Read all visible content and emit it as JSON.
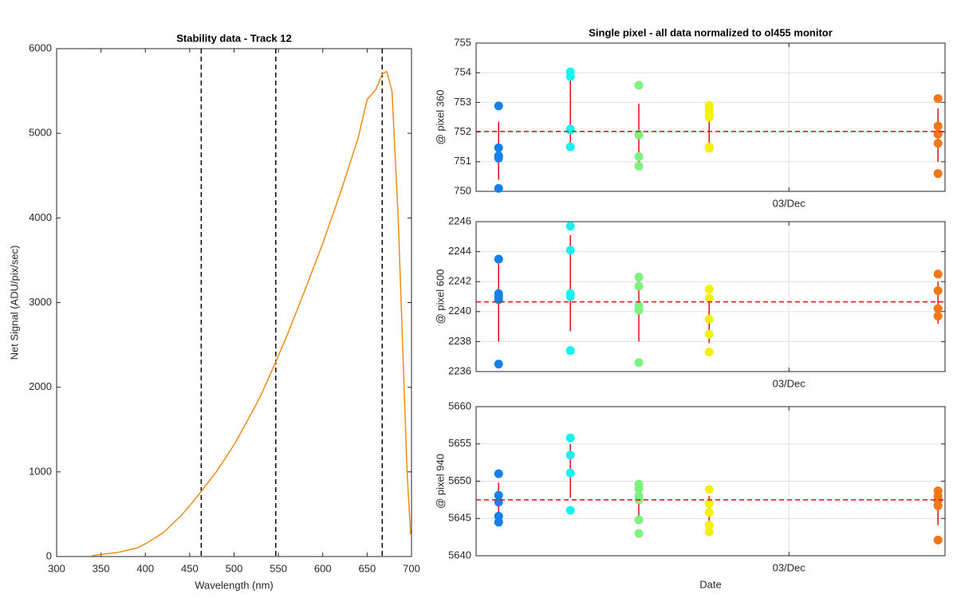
{
  "chart_data": [
    {
      "type": "line",
      "title": "Stability data - Track 12",
      "xlabel": "Wavelength (nm)",
      "ylabel": "Net Signal (ADU/pix/sec)",
      "xlim": [
        300,
        700
      ],
      "ylim": [
        0,
        6000
      ],
      "xticks": [
        300,
        350,
        400,
        450,
        500,
        550,
        600,
        650,
        700
      ],
      "yticks": [
        0,
        1000,
        2000,
        3000,
        4000,
        5000,
        6000
      ],
      "grid": false,
      "color": "#f08c14",
      "x": [
        340,
        350,
        370,
        390,
        400,
        420,
        440,
        450,
        463,
        480,
        500,
        520,
        530,
        547,
        560,
        580,
        600,
        620,
        640,
        650,
        660,
        667,
        672,
        678,
        685,
        690,
        695,
        699
      ],
      "values": [
        10,
        25,
        50,
        100,
        150,
        280,
        480,
        600,
        770,
        1000,
        1320,
        1700,
        1900,
        2300,
        2620,
        3150,
        3700,
        4300,
        4950,
        5400,
        5520,
        5700,
        5730,
        5500,
        4000,
        2500,
        1000,
        260
      ],
      "vlines": [
        463,
        547,
        667
      ]
    },
    {
      "type": "scatter",
      "title": "Single pixel - all data normalized to ol455 monitor",
      "ylabel": "@ pixel 360",
      "xlim": [
        0,
        100
      ],
      "xticks": [
        {
          "value": 66.7,
          "label": "03/Dec"
        }
      ],
      "ylim": [
        750,
        755
      ],
      "yticks": [
        750,
        751,
        752,
        753,
        754,
        755
      ],
      "grid": true,
      "mean": 752.02,
      "series": [
        {
          "color": "#1580e8",
          "x": [
            4.8,
            4.8,
            4.8,
            4.8,
            4.8
          ],
          "values": [
            752.88,
            751.47,
            751.2,
            751.12,
            750.1
          ]
        },
        {
          "color": "#19f0f0",
          "x": [
            20.1,
            20.1,
            20.1,
            20.1,
            20.1
          ],
          "values": [
            754.03,
            753.87,
            752.1,
            752.07,
            751.5
          ]
        },
        {
          "color": "#80f080",
          "x": [
            34.7,
            34.7,
            34.7,
            34.7,
            34.7
          ],
          "values": [
            753.58,
            751.93,
            751.9,
            751.17,
            750.85
          ]
        },
        {
          "color": "#f5f00a",
          "x": [
            49.7,
            49.7,
            49.7,
            49.7,
            49.7,
            49.7
          ],
          "values": [
            752.9,
            752.75,
            752.6,
            752.5,
            751.5,
            751.45
          ]
        },
        {
          "color": "#f07818",
          "x": [
            98.5,
            98.5,
            98.5,
            98.5,
            98.5
          ],
          "values": [
            753.13,
            752.2,
            751.93,
            751.62,
            750.6
          ]
        }
      ],
      "error_bars": {
        "x": [
          4.8,
          20.1,
          34.7,
          49.7,
          98.5
        ],
        "values": [
          751.37,
          752.75,
          751.93,
          752.18,
          751.9
        ],
        "errors": [
          0.98,
          1.15,
          1.03,
          0.68,
          0.9
        ]
      }
    },
    {
      "type": "scatter",
      "ylabel": "@ pixel 600",
      "xlim": [
        0,
        100
      ],
      "xticks": [
        {
          "value": 66.7,
          "label": "03/Dec"
        }
      ],
      "ylim": [
        2236,
        2246
      ],
      "yticks": [
        2236,
        2238,
        2240,
        2242,
        2244,
        2246
      ],
      "grid": true,
      "mean": 2240.65,
      "series": [
        {
          "color": "#1580e8",
          "x": [
            4.8,
            4.8,
            4.8,
            4.8,
            4.8
          ],
          "values": [
            2243.5,
            2241.2,
            2241.0,
            2240.8,
            2236.5
          ]
        },
        {
          "color": "#19f0f0",
          "x": [
            20.1,
            20.1,
            20.1,
            20.1,
            20.1
          ],
          "values": [
            2245.7,
            2244.1,
            2241.2,
            2241.0,
            2237.4
          ]
        },
        {
          "color": "#80f080",
          "x": [
            34.7,
            34.7,
            34.7,
            34.7,
            34.7
          ],
          "values": [
            2242.3,
            2241.7,
            2240.4,
            2240.1,
            2236.6
          ]
        },
        {
          "color": "#f5f00a",
          "x": [
            49.7,
            49.7,
            49.7,
            49.7,
            49.7
          ],
          "values": [
            2241.5,
            2240.9,
            2239.5,
            2238.5,
            2237.3
          ]
        },
        {
          "color": "#f07818",
          "x": [
            98.5,
            98.5,
            98.5,
            98.5
          ],
          "values": [
            2242.5,
            2241.4,
            2240.2,
            2239.7
          ]
        }
      ],
      "error_bars": {
        "x": [
          4.8,
          20.1,
          34.7,
          49.7,
          98.5
        ],
        "values": [
          2240.6,
          2241.9,
          2240.0,
          2239.5,
          2240.6
        ],
        "errors": [
          2.6,
          3.2,
          2.0,
          1.6,
          1.4
        ]
      }
    },
    {
      "type": "scatter",
      "ylabel": "@ pixel 940",
      "xlabel": "Date",
      "xlim": [
        0,
        100
      ],
      "xticks": [
        {
          "value": 66.7,
          "label": "03/Dec"
        }
      ],
      "ylim": [
        5640,
        5660
      ],
      "yticks": [
        5640,
        5645,
        5650,
        5655,
        5660
      ],
      "grid": true,
      "mean": 5647.5,
      "series": [
        {
          "color": "#1580e8",
          "x": [
            4.8,
            4.8,
            4.8,
            4.8,
            4.8
          ],
          "values": [
            5651,
            5648.1,
            5647.2,
            5645.3,
            5644.5
          ]
        },
        {
          "color": "#19f0f0",
          "x": [
            20.1,
            20.1,
            20.1,
            20.1
          ],
          "values": [
            5655.8,
            5653.5,
            5651.1,
            5646.1
          ]
        },
        {
          "color": "#80f080",
          "x": [
            34.7,
            34.7,
            34.7,
            34.7,
            34.7,
            34.7
          ],
          "values": [
            5649.6,
            5649,
            5648,
            5647.5,
            5644.8,
            5643
          ]
        },
        {
          "color": "#f5f00a",
          "x": [
            49.7,
            49.7,
            49.7,
            49.7,
            49.7
          ],
          "values": [
            5648.9,
            5647,
            5645.8,
            5644.1,
            5643.2
          ]
        },
        {
          "color": "#f07818",
          "x": [
            98.5,
            98.5,
            98.5,
            98.5,
            98.5
          ],
          "values": [
            5648.7,
            5648,
            5647.4,
            5646.7,
            5642.1
          ]
        }
      ],
      "error_bars": {
        "x": [
          4.8,
          20.1,
          34.7,
          49.7,
          98.5
        ],
        "values": [
          5647.1,
          5651.4,
          5647.0,
          5646.0,
          5646.4
        ],
        "errors": [
          2.7,
          3.6,
          2.5,
          2.0,
          2.3
        ]
      }
    }
  ]
}
